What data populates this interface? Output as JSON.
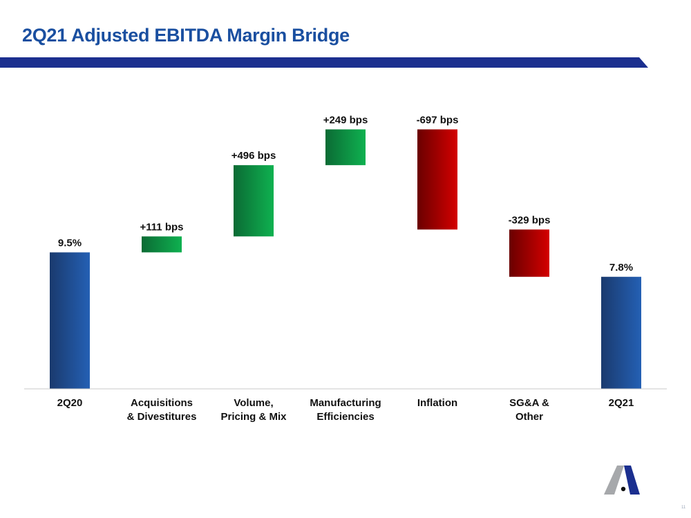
{
  "title": "2Q21 Adjusted EBITDA Margin Bridge",
  "page_number": "11",
  "colors": {
    "title": "#1a4fa0",
    "band": "#1b2f8f",
    "start_end": "#1e4e9c",
    "increase": "#0fa94a",
    "decrease": "#c00000",
    "label": "#111111"
  },
  "chart_data": {
    "type": "bar",
    "subtype": "waterfall",
    "title": "",
    "xlabel": "",
    "ylabel": "",
    "unit": "%",
    "categories": [
      [
        "2Q20"
      ],
      [
        "Acquisitions",
        "& Divestitures"
      ],
      [
        "Volume,",
        "Pricing & Mix"
      ],
      [
        "Manufacturing",
        "Efficiencies"
      ],
      [
        "Inflation"
      ],
      [
        "SG&A &",
        "Other"
      ],
      [
        "2Q21"
      ]
    ],
    "steps": [
      {
        "kind": "total",
        "value": 9.5,
        "label": "9.5%"
      },
      {
        "kind": "delta",
        "value": 1.11,
        "label": "+111 bps"
      },
      {
        "kind": "delta",
        "value": 4.96,
        "label": "+496 bps"
      },
      {
        "kind": "delta",
        "value": 2.49,
        "label": "+249 bps"
      },
      {
        "kind": "delta",
        "value": -6.97,
        "label": "-697 bps"
      },
      {
        "kind": "delta",
        "value": -3.29,
        "label": "-329 bps"
      },
      {
        "kind": "total",
        "value": 7.8,
        "label": "7.8%"
      }
    ],
    "ylim": [
      0,
      19.2
    ],
    "grid": false,
    "legend": "none"
  }
}
